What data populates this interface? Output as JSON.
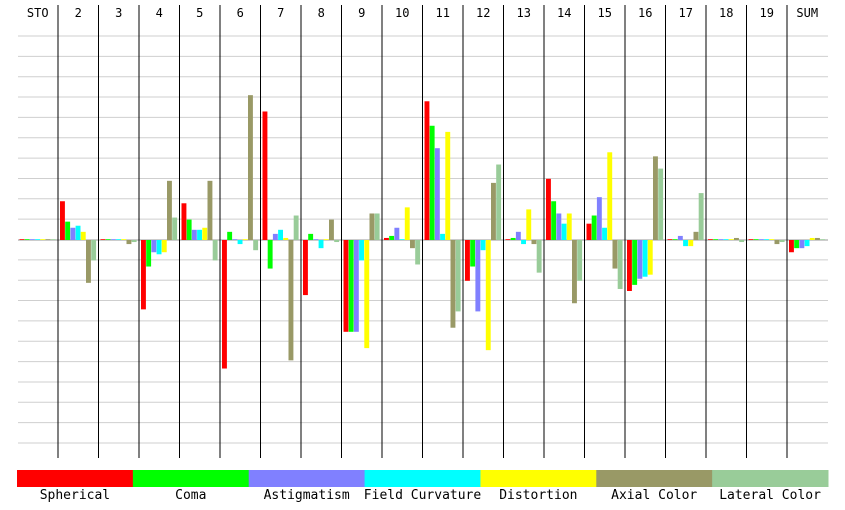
{
  "chart_data": {
    "type": "bar",
    "categories": [
      "STO",
      "2",
      "3",
      "4",
      "5",
      "6",
      "7",
      "8",
      "9",
      "10",
      "11",
      "12",
      "13",
      "14",
      "15",
      "16",
      "17",
      "18",
      "19",
      "SUM"
    ],
    "ylim": [
      -10,
      10
    ],
    "grid": true,
    "legend_position": "bottom",
    "series": [
      {
        "name": "Spherical",
        "color": "#ff0000",
        "values": [
          0,
          1.9,
          0,
          -3.4,
          1.8,
          -6.3,
          6.3,
          -2.7,
          -4.5,
          0.1,
          6.8,
          -2.0,
          0,
          3.0,
          0.8,
          -2.5,
          0,
          0,
          0,
          -0.6
        ]
      },
      {
        "name": "Coma",
        "color": "#00ff00",
        "values": [
          0,
          0.9,
          0,
          -1.3,
          1.0,
          0.4,
          -1.4,
          0.3,
          -4.5,
          0.2,
          5.6,
          -1.3,
          0.1,
          1.9,
          1.2,
          -2.2,
          0,
          0,
          0,
          -0.4
        ]
      },
      {
        "name": "Astigmatism",
        "color": "#8080ff",
        "values": [
          0,
          0.6,
          0,
          -0.6,
          0.5,
          0,
          0.3,
          0,
          -4.5,
          0.6,
          4.5,
          -3.5,
          0.4,
          1.3,
          2.1,
          -1.9,
          0.2,
          0,
          0,
          -0.4
        ]
      },
      {
        "name": "Field Curvature",
        "color": "#00ffff",
        "values": [
          0,
          0.7,
          0,
          -0.7,
          0.5,
          -0.2,
          0.5,
          -0.4,
          -1.0,
          0,
          0.3,
          -0.5,
          -0.2,
          0.8,
          0.6,
          -1.8,
          -0.3,
          0,
          0,
          -0.3
        ]
      },
      {
        "name": "Distortion",
        "color": "#ffff00",
        "values": [
          0,
          0.4,
          0,
          -0.6,
          0.6,
          0,
          0.1,
          0,
          -5.3,
          1.6,
          5.3,
          -5.4,
          1.5,
          1.3,
          4.3,
          -1.7,
          -0.3,
          0,
          0,
          0.1
        ]
      },
      {
        "name": "Axial Color",
        "color": "#999966",
        "values": [
          0,
          -2.1,
          -0.2,
          2.9,
          2.9,
          7.1,
          -5.9,
          1.0,
          1.3,
          -0.4,
          -4.3,
          2.8,
          -0.2,
          -3.1,
          -1.4,
          4.1,
          0.4,
          0.1,
          -0.2,
          0.1
        ]
      },
      {
        "name": "Lateral Color",
        "color": "#99cc99",
        "values": [
          0,
          -1.0,
          -0.1,
          1.1,
          -1.0,
          -0.5,
          1.2,
          -0.1,
          1.3,
          -1.2,
          -3.5,
          3.7,
          -1.6,
          -2.0,
          -2.4,
          3.5,
          2.3,
          -0.1,
          -0.1,
          0
        ]
      }
    ]
  }
}
